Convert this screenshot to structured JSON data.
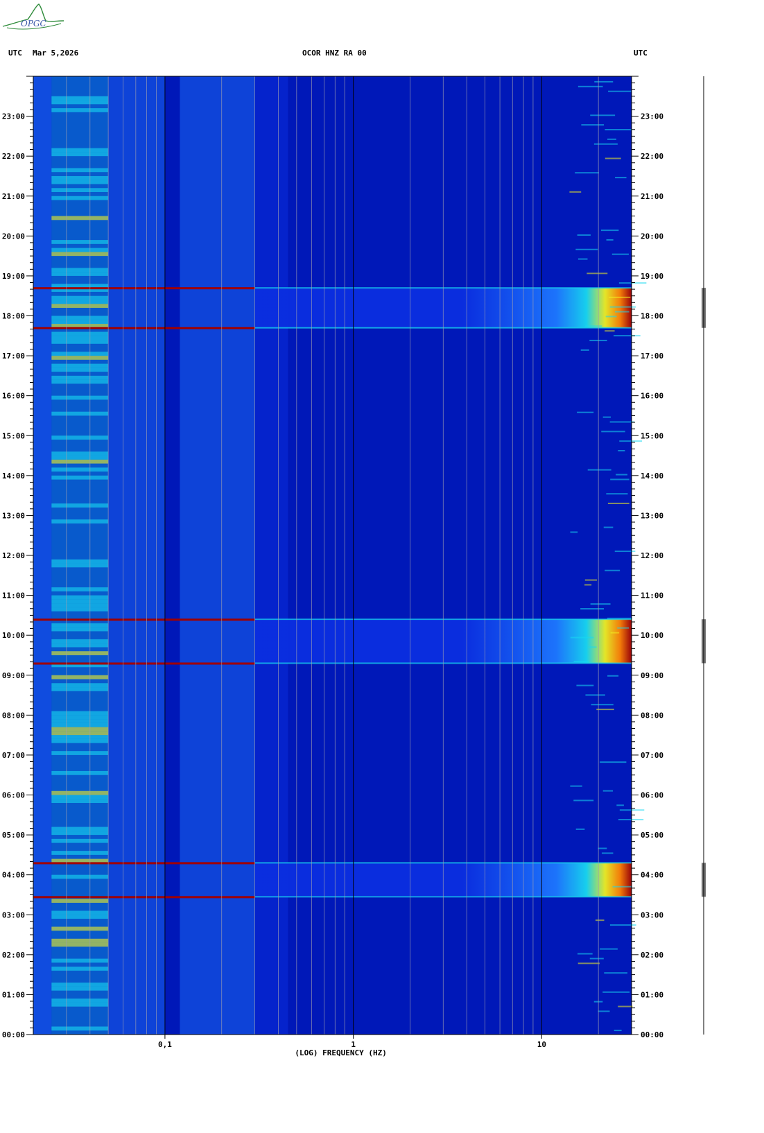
{
  "logo": {
    "text": "OPGC",
    "color": "#2e8b3a"
  },
  "header": {
    "left_tz": "UTC",
    "date": "Mar 5,2026",
    "station": "OCOR HNZ RA 00",
    "right_tz": "UTC"
  },
  "chart_data": {
    "type": "heatmap",
    "title": "OCOR HNZ RA 00",
    "xlabel": "(LOG) FREQUENCY (HZ)",
    "ylabel": "",
    "x_scale": "log",
    "xlim": [
      0.02,
      30
    ],
    "x_tick_labels": [
      {
        "value": 0.1,
        "label": "0,1"
      },
      {
        "value": 1,
        "label": "1"
      },
      {
        "value": 10,
        "label": "10"
      }
    ],
    "x_gridlines": [
      0.03,
      0.04,
      0.05,
      0.06,
      0.07,
      0.08,
      0.09,
      0.1,
      0.2,
      0.3,
      0.4,
      0.5,
      0.6,
      0.7,
      0.8,
      0.9,
      1,
      2,
      3,
      4,
      5,
      6,
      7,
      8,
      9,
      10,
      20
    ],
    "y_hours": [
      0,
      24
    ],
    "y_tick_labels": [
      "00:00",
      "01:00",
      "02:00",
      "03:00",
      "04:00",
      "05:00",
      "06:00",
      "07:00",
      "08:00",
      "09:00",
      "10:00",
      "11:00",
      "12:00",
      "13:00",
      "14:00",
      "15:00",
      "16:00",
      "17:00",
      "18:00",
      "19:00",
      "20:00",
      "21:00",
      "22:00",
      "23:00"
    ],
    "colormap": [
      "#00009a",
      "#0a2ee0",
      "#1e78ff",
      "#18d8f0",
      "#f0f020",
      "#ff8000",
      "#a00000"
    ],
    "background_color": "#0018b8",
    "events": [
      {
        "start_hour": 3.45,
        "end_hour": 4.3
      },
      {
        "start_hour": 9.3,
        "end_hour": 10.4
      },
      {
        "start_hour": 17.7,
        "end_hour": 18.7
      }
    ]
  }
}
